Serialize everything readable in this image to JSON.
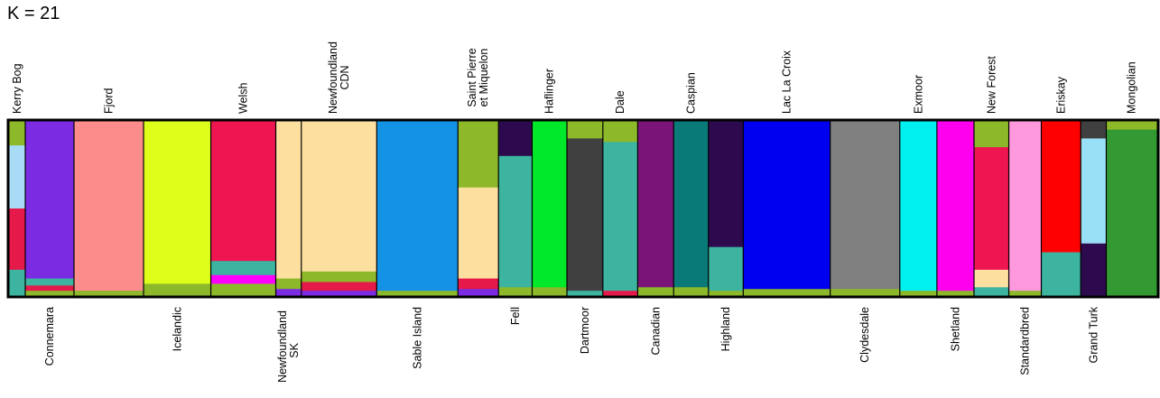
{
  "title": "K = 21",
  "chart_data": {
    "type": "bar",
    "stacked": true,
    "normalized": true,
    "title": "K = 21",
    "ylim": [
      0,
      1
    ],
    "grid": false,
    "legend": "none",
    "populations": [
      {
        "name": "Kerry Bog",
        "side": "top",
        "width_share": 1.4,
        "components": [
          [
            "#8cb82a",
            0.14
          ],
          [
            "#a8dcf6",
            0.36
          ],
          [
            "#e6194b",
            0.35
          ],
          [
            "#3cb4a0",
            0.15
          ]
        ]
      },
      {
        "name": "Connemara",
        "side": "bottom",
        "width_share": 4.2,
        "components": [
          [
            "#7b2be2",
            0.9
          ],
          [
            "#3cb4a0",
            0.04
          ],
          [
            "#e6194b",
            0.03
          ],
          [
            "#8cb82a",
            0.03
          ]
        ]
      },
      {
        "name": "Fjord",
        "side": "top",
        "width_share": 6.0,
        "components": [
          [
            "#fc8c8c",
            0.97
          ],
          [
            "#8cb82a",
            0.03
          ]
        ]
      },
      {
        "name": "Icelandic",
        "side": "bottom",
        "width_share": 5.8,
        "components": [
          [
            "#ddff1a",
            0.93
          ],
          [
            "#8cb82a",
            0.07
          ]
        ]
      },
      {
        "name": "Welsh",
        "side": "top",
        "width_share": 5.6,
        "components": [
          [
            "#ee1550",
            0.8
          ],
          [
            "#3cb4a0",
            0.08
          ],
          [
            "#ff00ff",
            0.05
          ],
          [
            "#8cb82a",
            0.07
          ]
        ]
      },
      {
        "name": "Newfoundland SK",
        "side": "bottom",
        "width_share": 2.2,
        "components": [
          [
            "#fde0a0",
            0.9
          ],
          [
            "#8cb82a",
            0.06
          ],
          [
            "#7b2be2",
            0.04
          ]
        ]
      },
      {
        "name": "Newfoundland CDN",
        "side": "top",
        "width_share": 6.5,
        "components": [
          [
            "#fde0a0",
            0.86
          ],
          [
            "#8cb82a",
            0.06
          ],
          [
            "#e6194b",
            0.05
          ],
          [
            "#7b2be2",
            0.03
          ]
        ]
      },
      {
        "name": "Sable Island",
        "side": "bottom",
        "width_share": 7.0,
        "components": [
          [
            "#1493e6",
            0.97
          ],
          [
            "#8cb82a",
            0.03
          ]
        ]
      },
      {
        "name": "Saint Pierre et Miquelon",
        "side": "top",
        "width_share": 3.5,
        "components": [
          [
            "#8cb82a",
            0.38
          ],
          [
            "#fde0a0",
            0.52
          ],
          [
            "#e6194b",
            0.06
          ],
          [
            "#7b2be2",
            0.04
          ]
        ]
      },
      {
        "name": "Fell",
        "side": "bottom",
        "width_share": 2.9,
        "components": [
          [
            "#2d0a4e",
            0.2
          ],
          [
            "#3cb4a0",
            0.75
          ],
          [
            "#8cb82a",
            0.05
          ]
        ]
      },
      {
        "name": "Haflinger",
        "side": "top",
        "width_share": 3.0,
        "components": [
          [
            "#00e82a",
            0.95
          ],
          [
            "#8cb82a",
            0.05
          ]
        ]
      },
      {
        "name": "Dartmoor",
        "side": "bottom",
        "width_share": 3.1,
        "components": [
          [
            "#8cb82a",
            0.1
          ],
          [
            "#404040",
            0.87
          ],
          [
            "#3cb4a0",
            0.03
          ]
        ]
      },
      {
        "name": "Dale",
        "side": "top",
        "width_share": 3.0,
        "components": [
          [
            "#8cb82a",
            0.12
          ],
          [
            "#3cb4a0",
            0.85
          ],
          [
            "#e6194b",
            0.03
          ]
        ]
      },
      {
        "name": "Canadian",
        "side": "bottom",
        "width_share": 3.1,
        "components": [
          [
            "#7a1478",
            0.95
          ],
          [
            "#8cb82a",
            0.05
          ]
        ]
      },
      {
        "name": "Caspian",
        "side": "top",
        "width_share": 3.0,
        "components": [
          [
            "#0a7a78",
            0.95
          ],
          [
            "#8cb82a",
            0.05
          ]
        ]
      },
      {
        "name": "Highland",
        "side": "bottom",
        "width_share": 3.0,
        "components": [
          [
            "#2d0a4e",
            0.72
          ],
          [
            "#3cb4a0",
            0.25
          ],
          [
            "#8cb82a",
            0.03
          ]
        ]
      },
      {
        "name": "Lac La Croix",
        "side": "top",
        "width_share": 7.5,
        "components": [
          [
            "#0000f0",
            0.96
          ],
          [
            "#8cb82a",
            0.04
          ]
        ]
      },
      {
        "name": "Clydesdale",
        "side": "bottom",
        "width_share": 6.0,
        "components": [
          [
            "#808080",
            0.96
          ],
          [
            "#8cb82a",
            0.04
          ]
        ]
      },
      {
        "name": "Exmoor",
        "side": "top",
        "width_share": 3.2,
        "components": [
          [
            "#00f0f0",
            0.97
          ],
          [
            "#8cb82a",
            0.03
          ]
        ]
      },
      {
        "name": "Shetland",
        "side": "bottom",
        "width_share": 3.2,
        "components": [
          [
            "#ff00ee",
            0.97
          ],
          [
            "#8cb82a",
            0.03
          ]
        ]
      },
      {
        "name": "New Forest",
        "side": "top",
        "width_share": 3.0,
        "components": [
          [
            "#8cb82a",
            0.15
          ],
          [
            "#ee1550",
            0.7
          ],
          [
            "#fde0a0",
            0.1
          ],
          [
            "#3cb4a0",
            0.05
          ]
        ]
      },
      {
        "name": "Standardbred",
        "side": "bottom",
        "width_share": 2.8,
        "components": [
          [
            "#ff99dd",
            0.97
          ],
          [
            "#8cb82a",
            0.03
          ]
        ]
      },
      {
        "name": "Eriskay",
        "side": "top",
        "width_share": 3.4,
        "components": [
          [
            "#ff0000",
            0.75
          ],
          [
            "#3cb4a0",
            0.25
          ]
        ]
      },
      {
        "name": "Grand Turk",
        "side": "bottom",
        "width_share": 2.2,
        "components": [
          [
            "#404040",
            0.1
          ],
          [
            "#99e0f6",
            0.6
          ],
          [
            "#2d0a4e",
            0.3
          ]
        ]
      },
      {
        "name": "Mongolian",
        "side": "top",
        "width_share": 4.4,
        "components": [
          [
            "#8cb82a",
            0.05
          ],
          [
            "#339933",
            0.95
          ]
        ]
      }
    ]
  }
}
